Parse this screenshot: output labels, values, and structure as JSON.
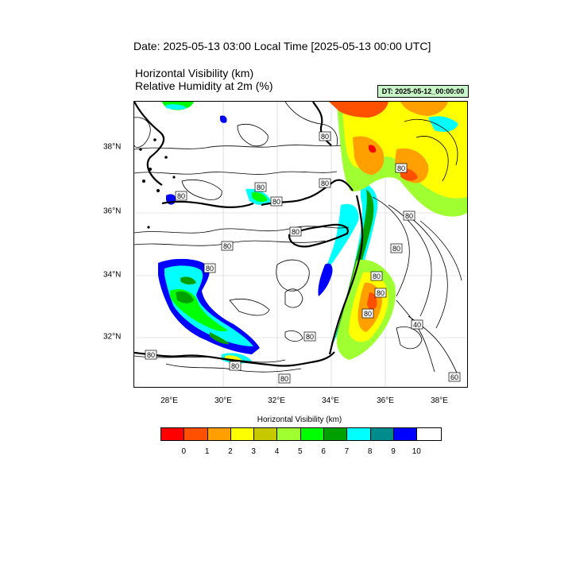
{
  "header": {
    "date_title": "Date: 2025-05-13  03:00 Local Time [2025-05-13  00:00 UTC]",
    "field_title_1": "Horizontal Visibility   (km)",
    "field_title_2": "Relative Humidity at 2m   (%)",
    "dt_label": "DT: 2025-05-12_00:00:00"
  },
  "map": {
    "lon_ticks": [
      "28°E",
      "30°E",
      "32°E",
      "34°E",
      "36°E",
      "38°E"
    ],
    "lat_ticks": [
      "38°N",
      "36°N",
      "34°N",
      "32°N"
    ],
    "contour_labels": [
      "80",
      "80",
      "80",
      "80",
      "80",
      "80",
      "80",
      "80",
      "80",
      "80",
      "80",
      "80",
      "80",
      "80",
      "80",
      "80",
      "80",
      "80",
      "40",
      "60"
    ]
  },
  "colorbar": {
    "title": "Horizontal Visibility  (km)",
    "labels": [
      "0",
      "1",
      "2",
      "3",
      "4",
      "5",
      "6",
      "7",
      "8",
      "9",
      "10"
    ],
    "colors": [
      "#ff0000",
      "#ff5000",
      "#ffa000",
      "#ffff00",
      "#c8c800",
      "#a0ff30",
      "#00ff00",
      "#00a000",
      "#00ffff",
      "#008c8c",
      "#0000ff",
      "#ffffff"
    ]
  }
}
